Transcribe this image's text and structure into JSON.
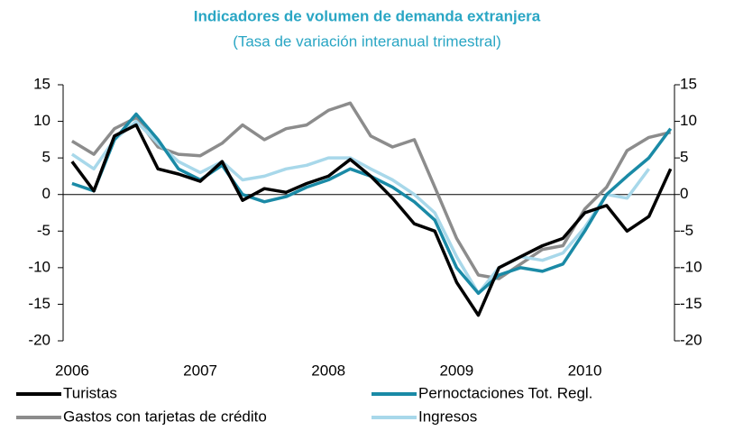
{
  "chart_data": {
    "type": "line",
    "title": "Indicadores de volumen de demanda extranjera",
    "subtitle": "(Tasa de variación interanual trimestral)",
    "x": [
      2006,
      2006.17,
      2006.33,
      2006.5,
      2006.67,
      2006.83,
      2007,
      2007.17,
      2007.33,
      2007.5,
      2007.67,
      2007.83,
      2008,
      2008.17,
      2008.33,
      2008.5,
      2008.67,
      2008.83,
      2009,
      2009.17,
      2009.33,
      2009.5,
      2009.67,
      2009.83,
      2010,
      2010.17,
      2010.33,
      2010.5,
      2010.67
    ],
    "xlim": [
      2005.93,
      2010.7
    ],
    "xticks": [
      2006,
      2007,
      2008,
      2009,
      2010
    ],
    "ylim": [
      -20,
      15
    ],
    "yticks": [
      -20,
      -15,
      -10,
      -5,
      0,
      5,
      10,
      15
    ],
    "y2lim": [
      -20,
      15
    ],
    "y2ticks": [
      -20,
      -15,
      -10,
      -5,
      0,
      5,
      10,
      15
    ],
    "series": [
      {
        "name": "Turistas",
        "color": "#000000",
        "values": [
          4.5,
          0.5,
          8,
          9.5,
          3.5,
          2.8,
          1.8,
          4.5,
          -0.8,
          0.8,
          0.3,
          1.5,
          2.5,
          4.8,
          2.5,
          -0.5,
          -4,
          -5,
          -12,
          -16.5,
          -10,
          -8.5,
          -7,
          -6,
          -2.5,
          -1.5,
          -5,
          -3,
          3.5
        ]
      },
      {
        "name": "Pernoctaciones Tot. Regl.",
        "color": "#1a8aa6",
        "values": [
          1.5,
          0.5,
          7.5,
          11,
          7.5,
          3.5,
          2,
          4,
          0,
          -1,
          -0.3,
          1,
          2,
          3.5,
          2.5,
          1,
          -1,
          -3.5,
          -10,
          -13.5,
          -11,
          -10,
          -10.5,
          -9.5,
          -5,
          0,
          2.5,
          5,
          9
        ]
      },
      {
        "name": "Gastos con tarjetas de crédito",
        "color": "#8c8c8c",
        "values": [
          7.3,
          5.5,
          9,
          10.5,
          6.5,
          5.5,
          5.3,
          7,
          9.5,
          7.5,
          9,
          9.5,
          11.5,
          12.5,
          8,
          6.5,
          7.5,
          1,
          -6,
          -11,
          -11.5,
          -9.5,
          -7.5,
          -7,
          -2,
          1,
          6,
          7.8,
          8.5
        ]
      },
      {
        "name": "Ingresos",
        "color": "#a8d8ea",
        "values": [
          5.5,
          3.5,
          7.5,
          10,
          7,
          4.5,
          3,
          4.5,
          2,
          2.5,
          3.5,
          4,
          5,
          5,
          3.5,
          2,
          0,
          -2.5,
          -8.5,
          -13.5,
          -10,
          -8.5,
          -9,
          -8,
          -4.5,
          0,
          -0.5,
          3.5,
          null
        ]
      }
    ]
  }
}
